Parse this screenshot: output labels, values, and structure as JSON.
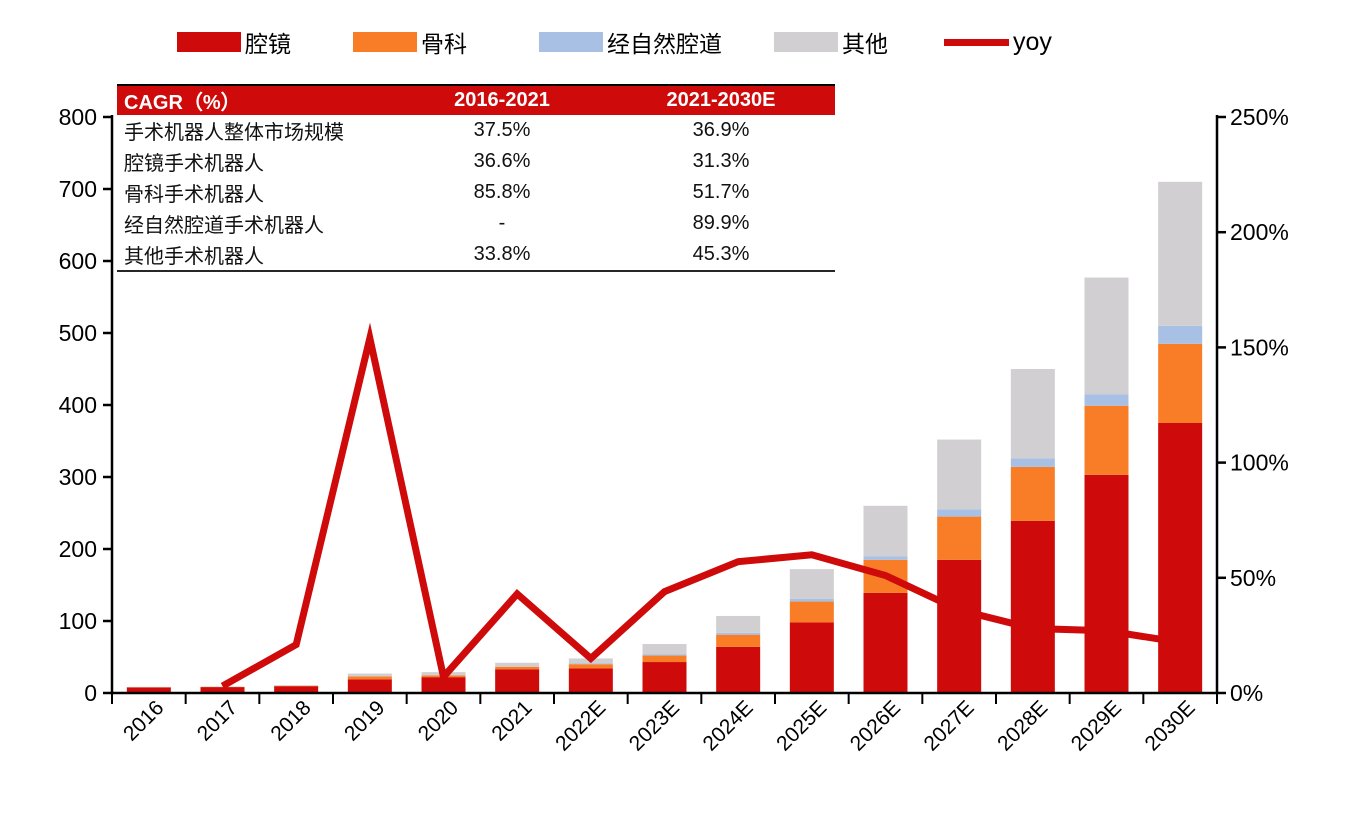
{
  "table": {
    "header_bg": "#CE0A0A",
    "header": [
      "CAGR（%）",
      "2016-2021",
      "2021-2030E"
    ],
    "rows": [
      [
        "手术机器人整体市场规模",
        "37.5%",
        "36.9%"
      ],
      [
        "腔镜手术机器人",
        "36.6%",
        "31.3%"
      ],
      [
        "骨科手术机器人",
        "85.8%",
        "51.7%"
      ],
      [
        "经自然腔道手术机器人",
        "-",
        "89.9%"
      ],
      [
        "其他手术机器人",
        "33.8%",
        "45.3%"
      ]
    ]
  },
  "chart_data": {
    "type": "bar",
    "variant": "stacked-columns-with-yoy-line",
    "title": "",
    "categories": [
      "2016",
      "2017",
      "2018",
      "2019",
      "2020",
      "2021",
      "2022E",
      "2023E",
      "2024E",
      "2025E",
      "2026E",
      "2027E",
      "2028E",
      "2029E",
      "2030E"
    ],
    "series": [
      {
        "name": "腔镜",
        "color": "#CF0A0A",
        "values": [
          8,
          8.5,
          9.5,
          19,
          22,
          33,
          34,
          43,
          64,
          98,
          139,
          185,
          239,
          303,
          375
        ]
      },
      {
        "name": "骨科",
        "color": "#F87D26",
        "values": [
          0.2,
          0.2,
          0.5,
          4,
          2.5,
          3.5,
          6,
          9,
          17,
          29,
          46,
          60,
          75,
          96,
          110
        ]
      },
      {
        "name": "经自然腔道",
        "color": "#A7C0E4",
        "values": [
          0,
          0,
          0,
          0,
          0,
          0,
          1,
          1.5,
          2.5,
          4,
          5,
          10,
          12,
          16,
          25
        ]
      },
      {
        "name": "其他",
        "color": "#D1CFD1",
        "values": [
          0.3,
          0.3,
          1,
          4,
          4.5,
          5.5,
          7,
          14.5,
          23.5,
          41,
          70,
          97,
          124,
          162,
          200
        ]
      }
    ],
    "totals": [
      8.5,
      9,
      11,
      27,
      29,
      42,
      48,
      68,
      107,
      172,
      260,
      352,
      450,
      577,
      710
    ],
    "line_series": {
      "name": "yoy",
      "color": "#CF0A0A",
      "axis": "right",
      "values_pct": [
        null,
        3,
        21,
        154,
        7,
        43,
        15,
        44,
        57,
        60,
        51,
        36,
        28,
        27,
        22
      ]
    },
    "left_axis": {
      "min": 0,
      "max": 800,
      "tick_step": 100,
      "tick_labels": [
        "0",
        "100",
        "200",
        "300",
        "400",
        "500",
        "600",
        "700",
        "800"
      ]
    },
    "right_axis": {
      "min": 0,
      "max": 250,
      "tick_step": 50,
      "tick_labels": [
        "0%",
        "50%",
        "100%",
        "150%",
        "200%",
        "250%"
      ]
    },
    "legend_position": "top",
    "grid": false,
    "axis_color": "#000000"
  }
}
